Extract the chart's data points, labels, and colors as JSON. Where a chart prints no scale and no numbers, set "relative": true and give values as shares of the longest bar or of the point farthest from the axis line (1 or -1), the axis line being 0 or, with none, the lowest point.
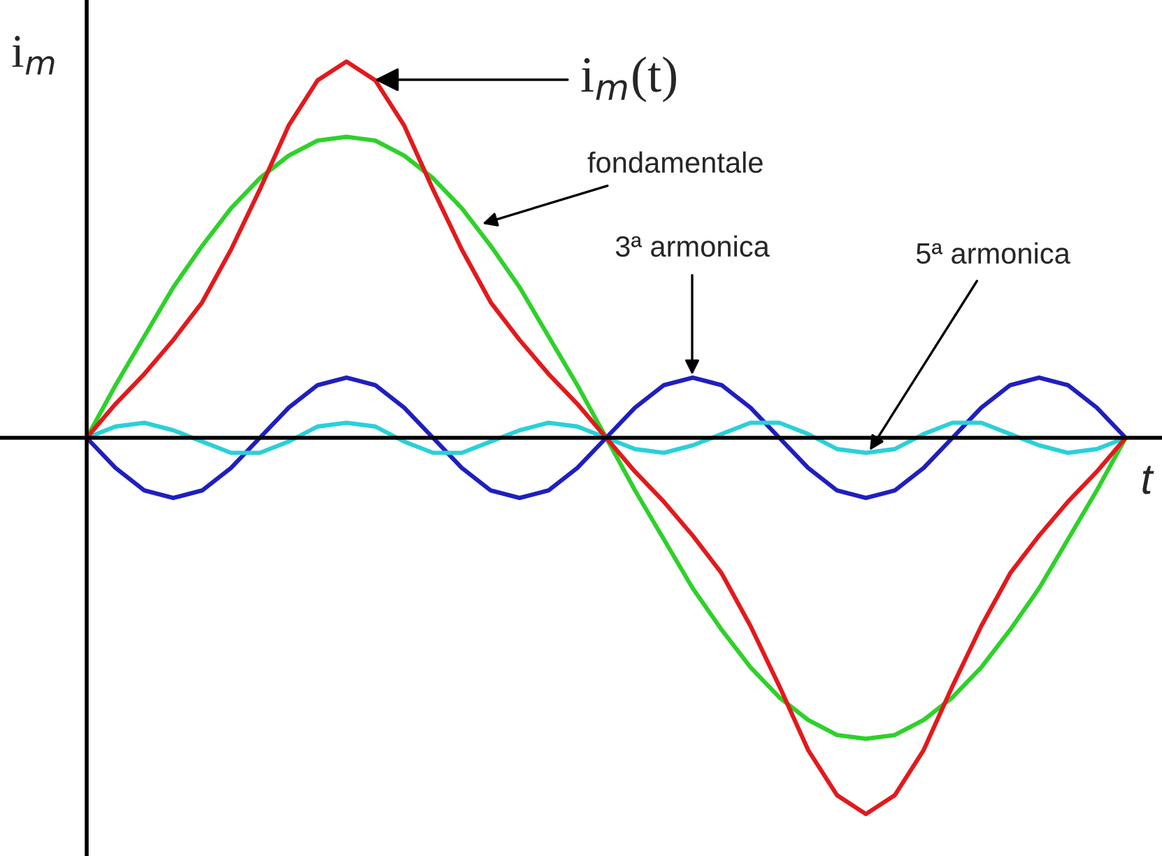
{
  "chart_data": {
    "type": "line",
    "relative": true,
    "xlabel": "t",
    "ylabel": "i$_{m}$",
    "categories": [
      null,
      null,
      null,
      null,
      null,
      null,
      null,
      null,
      null,
      null,
      null,
      null,
      null,
      null,
      null,
      null,
      null,
      null,
      null,
      null,
      null,
      null,
      null,
      null,
      null,
      null,
      null,
      null,
      null,
      null,
      null,
      null,
      null,
      null,
      null,
      null,
      null
    ],
    "series": [
      {
        "color": "#2ed12a",
        "values": [
          0,
          0.14,
          0.27,
          0.4,
          0.51,
          0.61,
          0.69,
          0.75,
          0.79,
          0.8,
          0.79,
          0.75,
          0.69,
          0.61,
          0.51,
          0.4,
          0.27,
          0.14,
          0,
          -0.14,
          -0.27,
          -0.4,
          -0.51,
          -0.61,
          -0.69,
          -0.75,
          -0.79,
          -0.8,
          -0.79,
          -0.75,
          -0.69,
          -0.61,
          -0.51,
          -0.4,
          -0.27,
          -0.14,
          0
        ]
      },
      {
        "color": "#1f1fbf",
        "values": [
          0,
          -0.08,
          -0.14,
          -0.16,
          -0.14,
          -0.08,
          0,
          0.08,
          0.14,
          0.16,
          0.14,
          0.08,
          0,
          -0.08,
          -0.14,
          -0.16,
          -0.14,
          -0.08,
          0,
          0.08,
          0.14,
          0.16,
          0.14,
          0.08,
          0,
          -0.08,
          -0.14,
          -0.16,
          -0.14,
          -0.08,
          0,
          0.08,
          0.14,
          0.16,
          0.14,
          0.08,
          0
        ]
      },
      {
        "color": "#2ad0d8",
        "values": [
          0,
          0.03,
          0.04,
          0.02,
          -0.01,
          -0.04,
          -0.04,
          -0.01,
          0.03,
          0.04,
          0.03,
          -0.01,
          -0.04,
          -0.04,
          -0.01,
          0.02,
          0.04,
          0.03,
          0,
          -0.03,
          -0.04,
          -0.02,
          0.01,
          0.04,
          0.04,
          0.01,
          -0.03,
          -0.04,
          -0.03,
          0.01,
          0.04,
          0.04,
          0.01,
          -0.02,
          -0.04,
          -0.03,
          0
        ]
      },
      {
        "color": "#e3191c",
        "values": [
          0,
          0.09,
          0.17,
          0.26,
          0.36,
          0.5,
          0.66,
          0.83,
          0.95,
          1,
          0.95,
          0.83,
          0.66,
          0.5,
          0.36,
          0.26,
          0.17,
          0.09,
          0,
          -0.09,
          -0.17,
          -0.26,
          -0.36,
          -0.5,
          -0.66,
          -0.83,
          -0.95,
          -1,
          -0.95,
          -0.83,
          -0.66,
          -0.5,
          -0.36,
          -0.26,
          -0.17,
          -0.09,
          0
        ]
      }
    ],
    "annotations": [
      "i$_{m}$(t)",
      "fondamentale",
      "3ª armonica",
      "5ª armonica"
    ],
    "legend": false,
    "grid": false
  }
}
